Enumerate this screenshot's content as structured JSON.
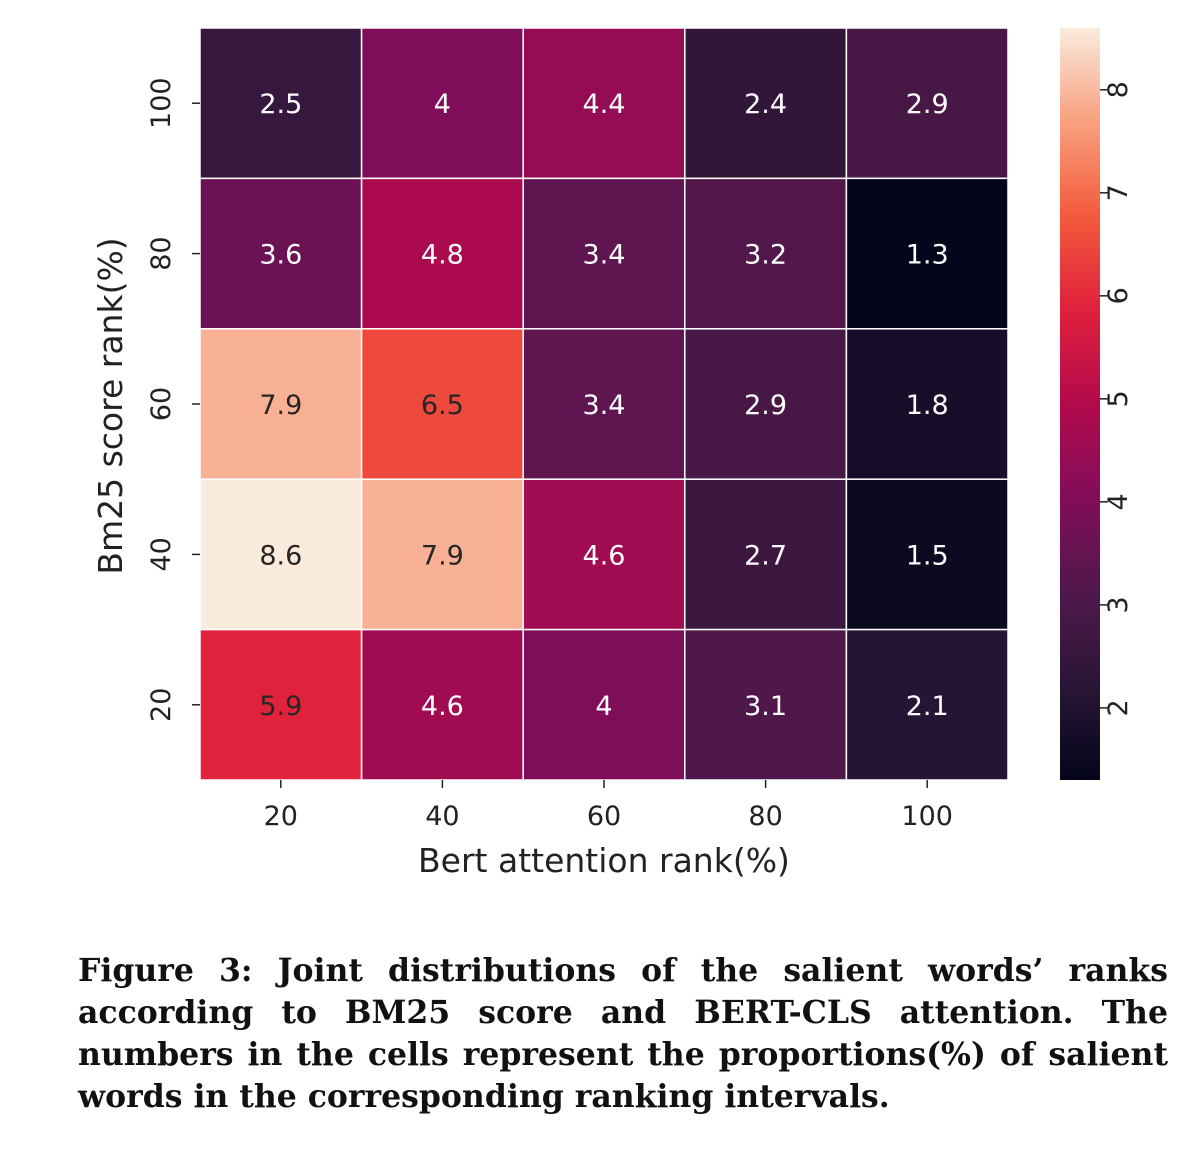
{
  "chart_data": {
    "type": "heatmap",
    "xlabel": "Bert attention rank(%)",
    "ylabel": "Bm25 score rank(%)",
    "x_categories": [
      "20",
      "40",
      "60",
      "80",
      "100"
    ],
    "y_categories": [
      "100",
      "80",
      "60",
      "40",
      "20"
    ],
    "values": [
      [
        2.5,
        4,
        4.4,
        2.4,
        2.9
      ],
      [
        3.6,
        4.8,
        3.4,
        3.2,
        1.3
      ],
      [
        7.9,
        6.5,
        3.4,
        2.9,
        1.8
      ],
      [
        8.6,
        7.9,
        4.6,
        2.7,
        1.5
      ],
      [
        5.9,
        4.6,
        4,
        3.1,
        2.1
      ]
    ],
    "cell_labels": [
      [
        "2.5",
        "4",
        "4.4",
        "2.4",
        "2.9"
      ],
      [
        "3.6",
        "4.8",
        "3.4",
        "3.2",
        "1.3"
      ],
      [
        "7.9",
        "6.5",
        "3.4",
        "2.9",
        "1.8"
      ],
      [
        "8.6",
        "7.9",
        "4.6",
        "2.7",
        "1.5"
      ],
      [
        "5.9",
        "4.6",
        "4",
        "3.1",
        "2.1"
      ]
    ],
    "colorbar": {
      "range": [
        1.3,
        8.6
      ],
      "ticks": [
        "2",
        "3",
        "4",
        "5",
        "6",
        "7",
        "8"
      ],
      "colormap": "rocket"
    }
  },
  "caption": "Figure 3: Joint distributions of the salient words’ ranks according to BM25 score and BERT-CLS attention. The numbers in the cells represent the proportions(%) of salient words in the corresponding ranking intervals."
}
